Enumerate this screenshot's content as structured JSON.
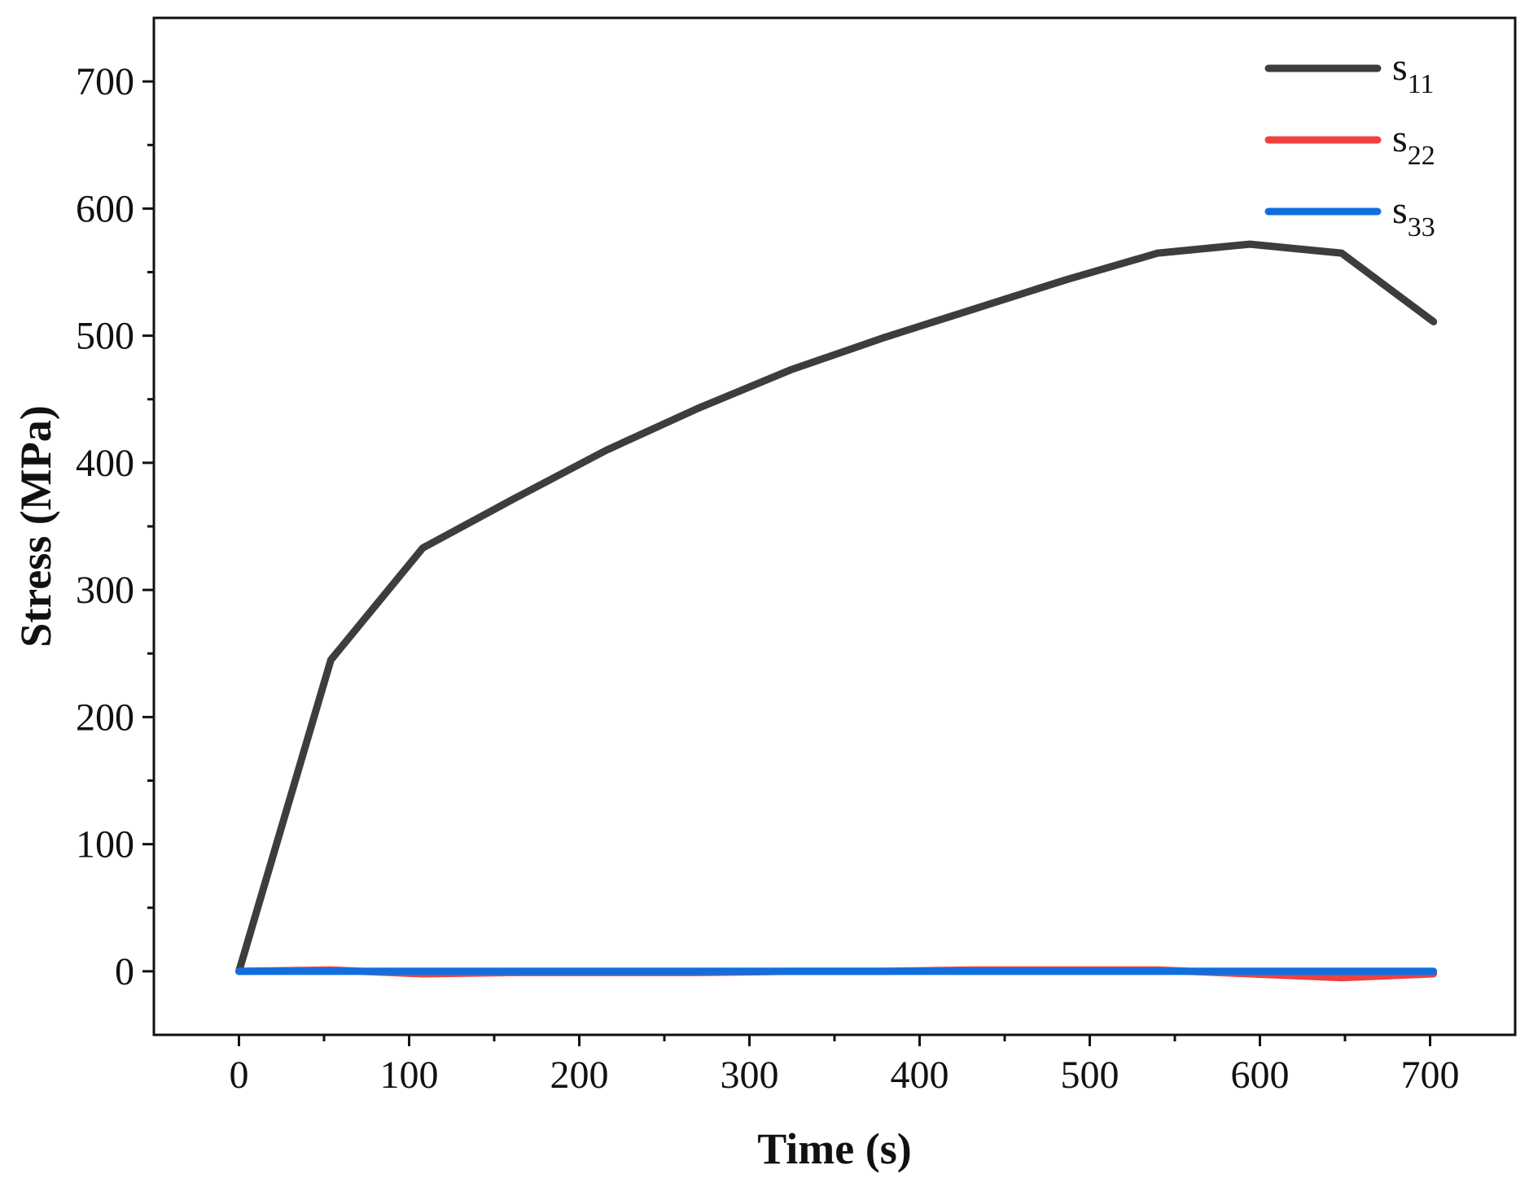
{
  "chart_data": {
    "type": "line",
    "title": "",
    "xlabel": "Time (s)",
    "ylabel": "Stress (MPa)",
    "xlim": [
      -50,
      750
    ],
    "ylim": [
      -50,
      750
    ],
    "xticks": [
      0,
      100,
      200,
      300,
      400,
      500,
      600,
      700
    ],
    "yticks": [
      0,
      100,
      200,
      300,
      400,
      500,
      600,
      700
    ],
    "grid": false,
    "legend_position": "top-right",
    "series": [
      {
        "name": "s",
        "subscript": "11",
        "color": "#3d3d3d",
        "x": [
          0,
          54,
          108,
          162,
          216,
          270,
          324,
          378,
          432,
          486,
          540,
          594,
          648,
          702
        ],
        "y": [
          0,
          245,
          333,
          372,
          410,
          443,
          473,
          498,
          521,
          544,
          565,
          572,
          565,
          511
        ]
      },
      {
        "name": "s",
        "subscript": "22",
        "color": "#f04040",
        "x": [
          0,
          54,
          108,
          162,
          216,
          270,
          324,
          378,
          432,
          486,
          540,
          594,
          648,
          702
        ],
        "y": [
          0,
          1,
          -2,
          -1,
          -1,
          -1,
          0,
          0,
          1,
          1,
          1,
          -2,
          -5,
          -2
        ]
      },
      {
        "name": "s",
        "subscript": "33",
        "color": "#0f6fe0",
        "x": [
          0,
          54,
          108,
          162,
          216,
          270,
          324,
          378,
          432,
          486,
          540,
          594,
          648,
          702
        ],
        "y": [
          0,
          0,
          0,
          0,
          0,
          0,
          0,
          0,
          0,
          0,
          0,
          0,
          0,
          0
        ]
      }
    ]
  }
}
